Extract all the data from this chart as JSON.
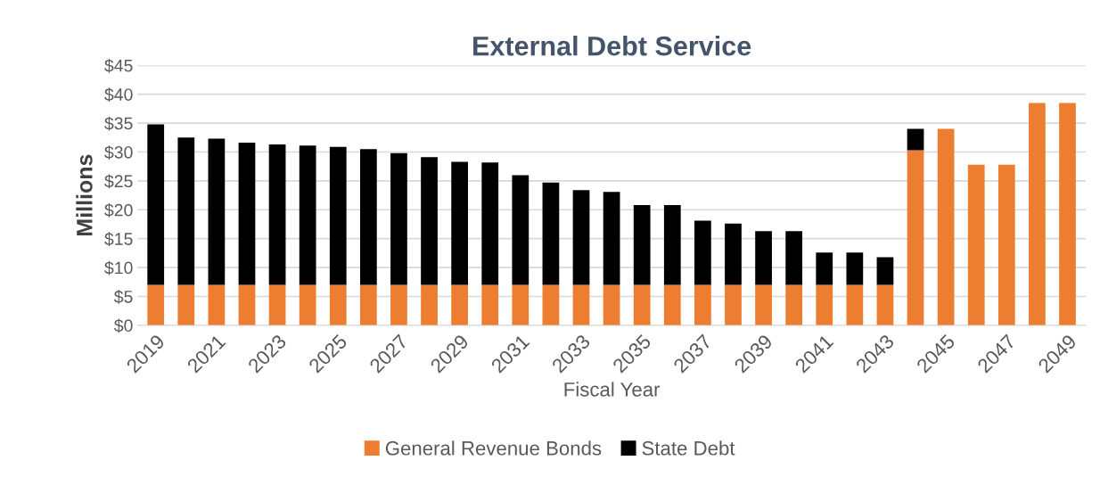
{
  "chart_data": {
    "type": "bar",
    "title": "External Debt Service",
    "xlabel": "Fiscal Year",
    "ylabel": "Millions",
    "categories": [
      "2019",
      null,
      "2021",
      null,
      "2023",
      null,
      "2025",
      null,
      "2027",
      null,
      "2029",
      null,
      "2031",
      null,
      "2033",
      null,
      "2035",
      null,
      "2037",
      null,
      "2039",
      null,
      "2041",
      null,
      "2043",
      null,
      "2045",
      null,
      "2047",
      null,
      "2049"
    ],
    "stacked": true,
    "series": [
      {
        "name": "General Revenue Bonds",
        "color": "#ed7d31",
        "values": [
          7.0,
          7.0,
          7.0,
          7.0,
          7.0,
          7.0,
          7.0,
          7.0,
          7.0,
          7.0,
          7.0,
          7.0,
          7.0,
          7.0,
          7.0,
          7.0,
          7.0,
          7.0,
          7.0,
          7.0,
          7.0,
          7.0,
          7.0,
          7.0,
          7.0,
          30.3,
          34.0,
          27.8,
          27.8,
          38.5,
          38.5
        ]
      },
      {
        "name": "State Debt",
        "color": "#000000",
        "values": [
          27.8,
          25.5,
          25.3,
          24.6,
          24.3,
          24.1,
          23.9,
          23.5,
          22.8,
          22.1,
          21.3,
          21.2,
          19.0,
          17.7,
          16.4,
          16.1,
          13.8,
          13.8,
          11.1,
          10.6,
          9.3,
          9.3,
          5.6,
          5.6,
          4.8,
          3.7,
          null,
          null,
          null,
          null,
          null
        ]
      }
    ],
    "ylim": [
      0,
      45
    ],
    "yticks": [
      {
        "value": 0,
        "label": "$0"
      },
      {
        "value": 5,
        "label": "$5"
      },
      {
        "value": 10,
        "label": "$10"
      },
      {
        "value": 15,
        "label": "$15"
      },
      {
        "value": 20,
        "label": "$20"
      },
      {
        "value": 25,
        "label": "$25"
      },
      {
        "value": 30,
        "label": "$30"
      },
      {
        "value": 35,
        "label": "$35"
      },
      {
        "value": 40,
        "label": "$40"
      },
      {
        "value": 45,
        "label": "$45"
      }
    ],
    "grid": "y",
    "legend": "bottom"
  }
}
